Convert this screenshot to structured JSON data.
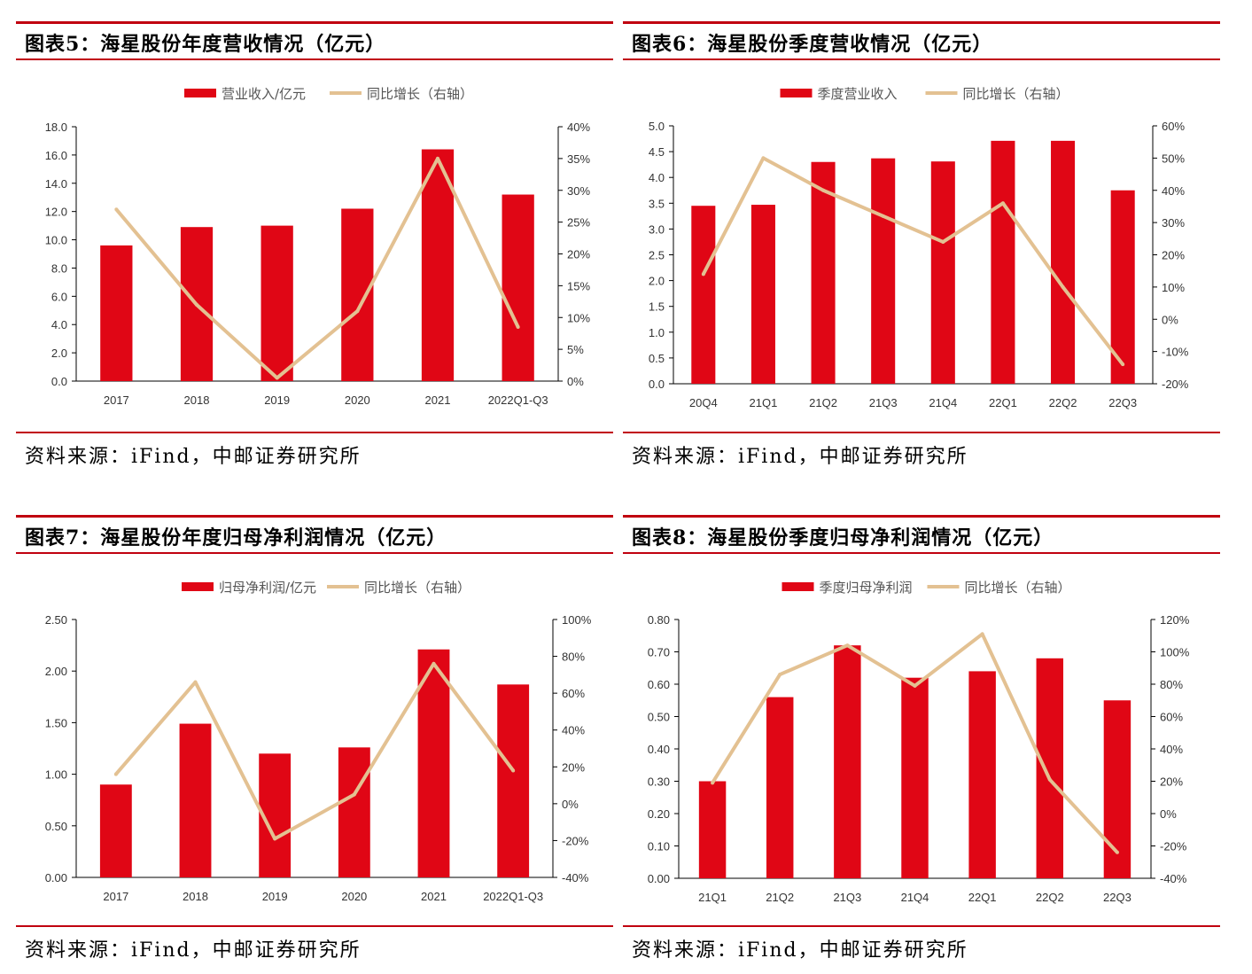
{
  "charts": [
    {
      "title": "图表5：海星股份年度营收情况（亿元）",
      "source": "资料来源：iFind，中邮证券研究所",
      "chart_data": {
        "type": "bar",
        "categories": [
          "2017",
          "2018",
          "2019",
          "2020",
          "2021",
          "2022Q1-Q3"
        ],
        "series": [
          {
            "name": "营业收入/亿元",
            "type": "bar",
            "axis": "left",
            "values": [
              9.6,
              10.9,
              11.0,
              12.2,
              16.4,
              13.2
            ]
          },
          {
            "name": "同比增长（右轴）",
            "type": "line",
            "axis": "right",
            "values": [
              27.0,
              12.0,
              0.5,
              11.0,
              35.0,
              8.5
            ]
          }
        ],
        "ylim": [
          0,
          18
        ],
        "yticks": [
          "0.0",
          "2.0",
          "4.0",
          "6.0",
          "8.0",
          "10.0",
          "12.0",
          "14.0",
          "16.0",
          "18.0"
        ],
        "y2lim": [
          0,
          40
        ],
        "y2ticks": [
          "0%",
          "5%",
          "10%",
          "15%",
          "20%",
          "25%",
          "30%",
          "35%",
          "40%"
        ],
        "legend_position": "top-center",
        "grid": false
      }
    },
    {
      "title": "图表6：海星股份季度营收情况（亿元）",
      "source": "资料来源：iFind，中邮证券研究所",
      "chart_data": {
        "type": "bar",
        "categories": [
          "20Q4",
          "21Q1",
          "21Q2",
          "21Q3",
          "21Q4",
          "22Q1",
          "22Q2",
          "22Q3"
        ],
        "series": [
          {
            "name": "季度营业收入",
            "type": "bar",
            "axis": "left",
            "values": [
              3.45,
              3.47,
              4.3,
              4.37,
              4.31,
              4.71,
              4.71,
              3.75
            ]
          },
          {
            "name": "同比增长（右轴）",
            "type": "line",
            "axis": "right",
            "values": [
              14,
              50,
              40,
              32,
              24,
              36,
              10,
              -14
            ]
          }
        ],
        "ylim": [
          0,
          5
        ],
        "yticks": [
          "0.0",
          "0.5",
          "1.0",
          "1.5",
          "2.0",
          "2.5",
          "3.0",
          "3.5",
          "4.0",
          "4.5",
          "5.0"
        ],
        "y2lim": [
          -20,
          60
        ],
        "y2ticks": [
          "-20%",
          "-10%",
          "0%",
          "10%",
          "20%",
          "30%",
          "40%",
          "50%",
          "60%"
        ],
        "legend_position": "top-center",
        "grid": false
      }
    },
    {
      "title": "图表7：海星股份年度归母净利润情况（亿元）",
      "source": "资料来源：iFind，中邮证券研究所",
      "chart_data": {
        "type": "bar",
        "categories": [
          "2017",
          "2018",
          "2019",
          "2020",
          "2021",
          "2022Q1-Q3"
        ],
        "series": [
          {
            "name": "归母净利润/亿元",
            "type": "bar",
            "axis": "left",
            "values": [
              0.9,
              1.49,
              1.2,
              1.26,
              2.21,
              1.87
            ]
          },
          {
            "name": "同比增长（右轴）",
            "type": "line",
            "axis": "right",
            "values": [
              16,
              66,
              -19,
              5,
              76,
              18
            ]
          }
        ],
        "ylim": [
          0,
          2.5
        ],
        "yticks": [
          "0.00",
          "0.50",
          "1.00",
          "1.50",
          "2.00",
          "2.50"
        ],
        "y2lim": [
          -40,
          100
        ],
        "y2ticks": [
          "-40%",
          "-20%",
          "0%",
          "20%",
          "40%",
          "60%",
          "80%",
          "100%"
        ],
        "legend_position": "top-center",
        "grid": false
      }
    },
    {
      "title": "图表8：海星股份季度归母净利润情况（亿元）",
      "source": "资料来源：iFind，中邮证券研究所",
      "chart_data": {
        "type": "bar",
        "categories": [
          "21Q1",
          "21Q2",
          "21Q3",
          "21Q4",
          "22Q1",
          "22Q2",
          "22Q3"
        ],
        "series": [
          {
            "name": "季度归母净利润",
            "type": "bar",
            "axis": "left",
            "values": [
              0.3,
              0.56,
              0.72,
              0.62,
              0.64,
              0.68,
              0.55
            ]
          },
          {
            "name": "同比增长（右轴）",
            "type": "line",
            "axis": "right",
            "values": [
              19,
              86,
              104,
              79,
              111,
              21,
              -24
            ]
          }
        ],
        "ylim": [
          0,
          0.8
        ],
        "yticks": [
          "0.00",
          "0.10",
          "0.20",
          "0.30",
          "0.40",
          "0.50",
          "0.60",
          "0.70",
          "0.80"
        ],
        "y2lim": [
          -40,
          120
        ],
        "y2ticks": [
          "-40%",
          "-20%",
          "0%",
          "20%",
          "40%",
          "60%",
          "80%",
          "100%",
          "120%"
        ],
        "legend_position": "top-center",
        "grid": false
      }
    }
  ],
  "colors": {
    "bar": "#e00615",
    "line": "#e3c192",
    "rule": "#c0000f"
  }
}
